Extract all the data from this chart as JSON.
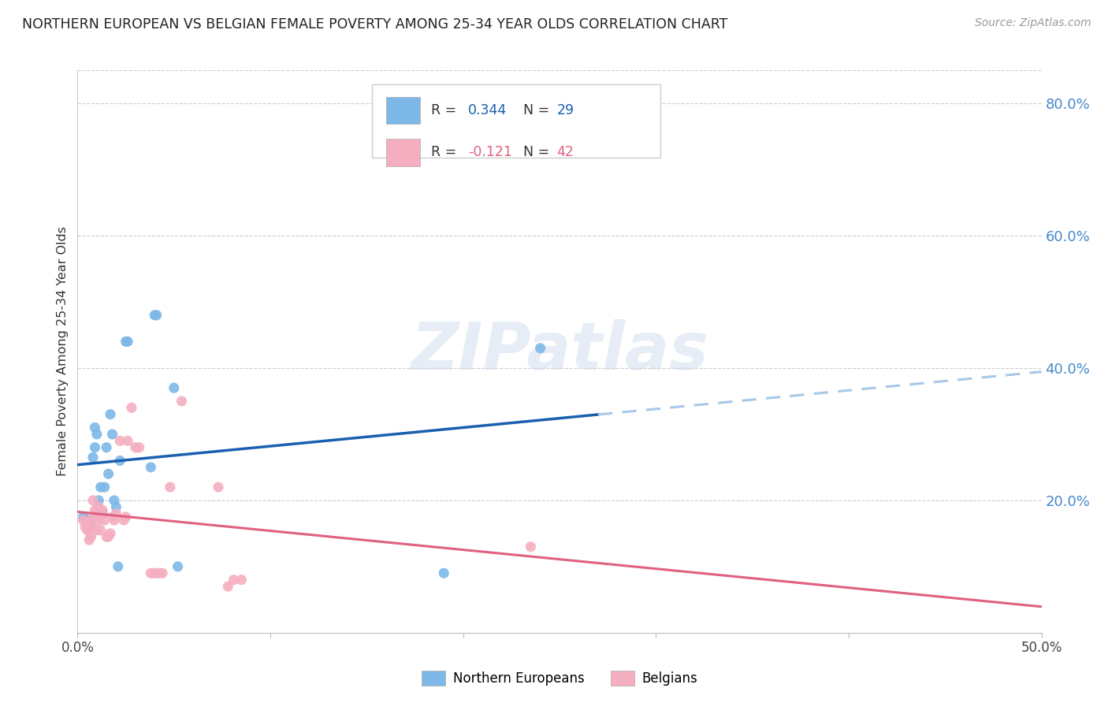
{
  "title": "NORTHERN EUROPEAN VS BELGIAN FEMALE POVERTY AMONG 25-34 YEAR OLDS CORRELATION CHART",
  "source": "Source: ZipAtlas.com",
  "ylabel": "Female Poverty Among 25-34 Year Olds",
  "legend_r1_label": "R = ",
  "legend_r1_val": "0.344",
  "legend_n1_label": "  N = ",
  "legend_n1_val": "29",
  "legend_r2_label": "R = ",
  "legend_r2_val": "-0.121",
  "legend_n2_label": "  N = ",
  "legend_n2_val": "42",
  "blue_scatter_color": "#7db8e8",
  "pink_scatter_color": "#f4aec0",
  "blue_line_color": "#1a5fb0",
  "pink_line_color": "#e06080",
  "blue_dash_color": "#a8c8e8",
  "right_axis_color": "#4488cc",
  "watermark": "ZIPatlas",
  "northern_europeans_x": [
    0.003,
    0.005,
    0.006,
    0.007,
    0.008,
    0.009,
    0.009,
    0.01,
    0.011,
    0.012,
    0.013,
    0.014,
    0.015,
    0.016,
    0.017,
    0.018,
    0.019,
    0.02,
    0.021,
    0.022,
    0.025,
    0.026,
    0.038,
    0.04,
    0.041,
    0.05,
    0.052,
    0.19,
    0.24
  ],
  "northern_europeans_y": [
    0.175,
    0.17,
    0.17,
    0.16,
    0.265,
    0.28,
    0.31,
    0.3,
    0.2,
    0.22,
    0.18,
    0.22,
    0.28,
    0.24,
    0.33,
    0.3,
    0.2,
    0.19,
    0.1,
    0.26,
    0.44,
    0.44,
    0.25,
    0.48,
    0.48,
    0.37,
    0.1,
    0.09,
    0.43
  ],
  "belgians_x": [
    0.003,
    0.004,
    0.005,
    0.005,
    0.006,
    0.006,
    0.007,
    0.007,
    0.008,
    0.008,
    0.009,
    0.01,
    0.01,
    0.011,
    0.011,
    0.012,
    0.013,
    0.014,
    0.015,
    0.016,
    0.017,
    0.018,
    0.019,
    0.02,
    0.022,
    0.024,
    0.025,
    0.026,
    0.028,
    0.03,
    0.032,
    0.038,
    0.04,
    0.042,
    0.044,
    0.048,
    0.054,
    0.073,
    0.078,
    0.081,
    0.085,
    0.235
  ],
  "belgians_y": [
    0.17,
    0.16,
    0.155,
    0.165,
    0.155,
    0.14,
    0.16,
    0.145,
    0.175,
    0.2,
    0.185,
    0.155,
    0.175,
    0.19,
    0.17,
    0.155,
    0.185,
    0.17,
    0.145,
    0.145,
    0.15,
    0.175,
    0.17,
    0.18,
    0.29,
    0.17,
    0.175,
    0.29,
    0.34,
    0.28,
    0.28,
    0.09,
    0.09,
    0.09,
    0.09,
    0.22,
    0.35,
    0.22,
    0.07,
    0.08,
    0.08,
    0.13
  ],
  "xlim": [
    0.0,
    0.5
  ],
  "ylim": [
    0.0,
    0.85
  ],
  "ytick_vals": [
    0.2,
    0.4,
    0.6,
    0.8
  ],
  "xtick_vals": [
    0.0,
    0.1,
    0.2,
    0.3,
    0.4,
    0.5
  ]
}
